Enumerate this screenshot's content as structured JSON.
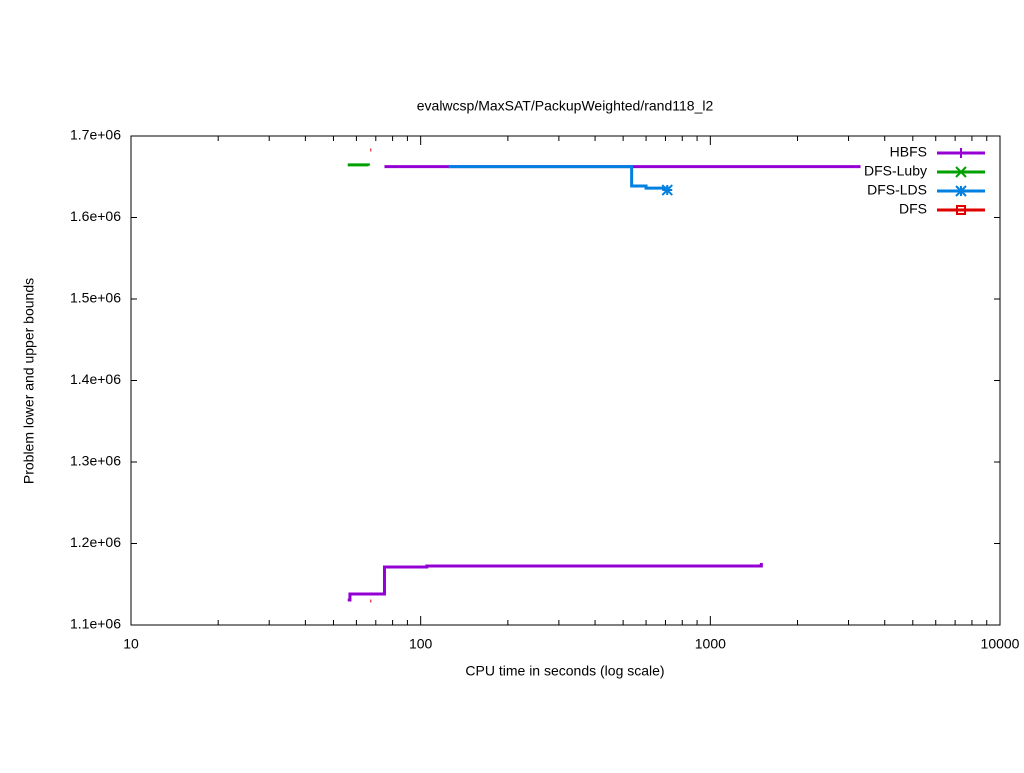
{
  "chart_data": {
    "type": "line",
    "title": "evalwcsp/MaxSAT/PackupWeighted/rand118_l2",
    "xlabel": "CPU time in seconds (log scale)",
    "ylabel": "Problem lower and upper bounds",
    "xscale": "log",
    "xlim": [
      10,
      10000
    ],
    "xticks": [
      10,
      100,
      1000,
      10000
    ],
    "ylim": [
      1100000,
      1700000
    ],
    "yticks": [
      {
        "value": 1100000,
        "label": "1.1e+06"
      },
      {
        "value": 1200000,
        "label": "1.2e+06"
      },
      {
        "value": 1300000,
        "label": "1.3e+06"
      },
      {
        "value": 1400000,
        "label": "1.4e+06"
      },
      {
        "value": 1500000,
        "label": "1.5e+06"
      },
      {
        "value": 1600000,
        "label": "1.6e+06"
      },
      {
        "value": 1700000,
        "label": "1.7e+06"
      }
    ],
    "legend": "top-right",
    "series": [
      {
        "name": "HBFS",
        "color": "#9400d3",
        "marker": "plus",
        "x": [
          56,
          57,
          75,
          105,
          1500,
          1500,
          75,
          3300
        ],
        "values": [
          1130700,
          1138000,
          1171200,
          1172400,
          1176000,
          null,
          1662500,
          1662500
        ]
      },
      {
        "name": "DFS-Luby",
        "color": "#00a000",
        "marker": "cross",
        "x": [
          56,
          66
        ],
        "values": [
          1664500,
          1663500
        ]
      },
      {
        "name": "DFS-LDS",
        "color": "#0080e0",
        "marker": "star",
        "x": [
          125,
          535,
          600,
          710
        ],
        "values": [
          1662500,
          1638700,
          1636000,
          1633700
        ]
      },
      {
        "name": "DFS",
        "color": "#e00000",
        "marker": "square",
        "x": [
          67,
          67,
          67
        ],
        "values": [
          1682800,
          null,
          1129400
        ]
      }
    ]
  }
}
